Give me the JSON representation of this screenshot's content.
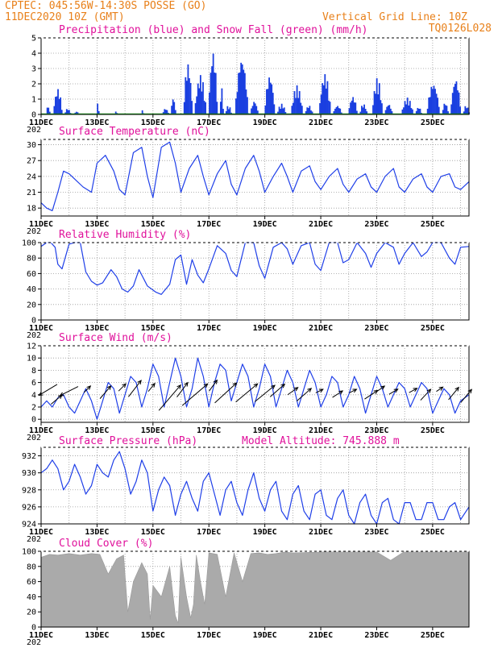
{
  "header": {
    "line1": "CPTEC:   045:56W-14:30S   POSSE (GO)",
    "line2": "11DEC2020 10Z (GMT)",
    "right1": "Vertical Grid Line: 10Z",
    "right2": "TQ0126L028"
  },
  "x_dates": [
    "11DEC",
    "13DEC",
    "15DEC",
    "17DEC",
    "19DEC",
    "21DEC",
    "23DEC",
    "25DEC"
  ],
  "x_year_stub": "202",
  "colors": {
    "line": "#1f3fe8",
    "precip": "#1a3fe0",
    "snow": "#1aa01a",
    "cloud": "#aaaaaa",
    "title": "#e0119b",
    "header": "#e8801a"
  },
  "chart_data": [
    {
      "type": "bar",
      "title": "Precipitation (blue) and Snow Fall (green) (mm/h)",
      "ylim": [
        0,
        5
      ],
      "yticks": [
        "0",
        "1",
        "2",
        "3",
        "4",
        "5"
      ],
      "x_days": [
        0,
        15.3
      ],
      "series": [
        {
          "name": "Precipitation",
          "color": "#1a3fe0"
        },
        {
          "name": "Snow Fall",
          "color": "#1aa01a",
          "values": [
            0
          ]
        }
      ],
      "episodes": [
        [
          0.15,
          0.3,
          0.6
        ],
        [
          0.4,
          0.75,
          1.7
        ],
        [
          0.8,
          1.05,
          0.4
        ],
        [
          1.15,
          1.35,
          0.2
        ],
        [
          1.95,
          2.05,
          0.8
        ],
        [
          2.6,
          2.7,
          0.3
        ],
        [
          3.55,
          3.65,
          0.3
        ],
        [
          4.3,
          4.55,
          0.4
        ],
        [
          4.6,
          4.8,
          1.1
        ],
        [
          5.05,
          5.4,
          3.4
        ],
        [
          5.45,
          5.9,
          2.6
        ],
        [
          5.95,
          6.3,
          4.2
        ],
        [
          6.35,
          6.5,
          1.8
        ],
        [
          6.55,
          6.8,
          0.6
        ],
        [
          6.9,
          7.4,
          3.8
        ],
        [
          7.45,
          7.75,
          0.9
        ],
        [
          7.95,
          8.35,
          2.6
        ],
        [
          8.4,
          8.75,
          0.7
        ],
        [
          8.9,
          9.35,
          1.9
        ],
        [
          9.4,
          9.7,
          0.6
        ],
        [
          9.9,
          10.35,
          2.7
        ],
        [
          10.4,
          10.75,
          0.6
        ],
        [
          10.95,
          11.3,
          1.2
        ],
        [
          11.35,
          11.65,
          0.7
        ],
        [
          11.8,
          12.2,
          2.4
        ],
        [
          12.25,
          12.55,
          0.7
        ],
        [
          12.85,
          13.3,
          1.1
        ],
        [
          13.35,
          13.6,
          0.5
        ],
        [
          13.75,
          14.25,
          2.1
        ],
        [
          14.3,
          14.55,
          0.8
        ],
        [
          14.6,
          15.0,
          2.4
        ],
        [
          15.05,
          15.3,
          0.6
        ]
      ]
    },
    {
      "type": "line",
      "title": "Surface Temperature (nC)",
      "ylim": [
        16.5,
        31
      ],
      "yticks": [
        "18",
        "21",
        "24",
        "27",
        "30"
      ],
      "x": [
        0,
        0.2,
        0.4,
        0.6,
        0.8,
        1.0,
        1.2,
        1.5,
        1.8,
        2.0,
        2.3,
        2.6,
        2.8,
        3.0,
        3.3,
        3.6,
        3.8,
        4.0,
        4.3,
        4.6,
        4.8,
        5.0,
        5.3,
        5.6,
        5.8,
        6.0,
        6.3,
        6.6,
        6.8,
        7.0,
        7.3,
        7.6,
        7.8,
        8.0,
        8.3,
        8.6,
        8.8,
        9.0,
        9.3,
        9.6,
        9.8,
        10.0,
        10.3,
        10.6,
        10.8,
        11.0,
        11.3,
        11.6,
        11.8,
        12.0,
        12.3,
        12.6,
        12.8,
        13.0,
        13.3,
        13.6,
        13.8,
        14.0,
        14.3,
        14.6,
        14.8,
        15.0,
        15.3
      ],
      "values": [
        19.0,
        18.0,
        17.5,
        21.0,
        25.0,
        24.5,
        23.5,
        22.0,
        21.0,
        26.5,
        28.0,
        25.0,
        21.5,
        20.5,
        28.5,
        29.5,
        24.0,
        20.0,
        29.5,
        30.5,
        26.5,
        21.0,
        25.5,
        28.0,
        24.0,
        20.5,
        24.5,
        27.0,
        22.5,
        20.5,
        25.5,
        28.0,
        25.0,
        21.0,
        24.0,
        26.5,
        24.0,
        21.0,
        25.0,
        26.0,
        23.0,
        21.5,
        24.0,
        25.5,
        22.5,
        21.0,
        23.5,
        24.5,
        22.0,
        21.0,
        24.0,
        25.5,
        22.0,
        21.0,
        23.5,
        24.5,
        22.0,
        21.0,
        24.0,
        24.5,
        22.0,
        21.5,
        23.0
      ]
    },
    {
      "type": "line",
      "title": "Relative Humidity (%)",
      "ylim": [
        0,
        100
      ],
      "yticks": [
        "0",
        "20",
        "40",
        "60",
        "80",
        "100"
      ],
      "x": [
        0,
        0.2,
        0.35,
        0.5,
        0.6,
        0.75,
        1.0,
        1.2,
        1.4,
        1.6,
        1.8,
        2.0,
        2.2,
        2.5,
        2.7,
        2.9,
        3.1,
        3.3,
        3.5,
        3.8,
        4.1,
        4.3,
        4.6,
        4.8,
        5.0,
        5.2,
        5.4,
        5.6,
        5.8,
        6.0,
        6.3,
        6.6,
        6.8,
        7.0,
        7.3,
        7.6,
        7.8,
        8.0,
        8.3,
        8.6,
        8.8,
        9.0,
        9.3,
        9.6,
        9.8,
        10.0,
        10.3,
        10.6,
        10.8,
        11.0,
        11.3,
        11.6,
        11.8,
        12.0,
        12.3,
        12.6,
        12.8,
        13.0,
        13.3,
        13.6,
        13.8,
        14.0,
        14.3,
        14.6,
        14.8,
        15.0,
        15.3
      ],
      "values": [
        95,
        100,
        100,
        94,
        72,
        66,
        98,
        100,
        100,
        62,
        50,
        45,
        48,
        65,
        56,
        40,
        36,
        44,
        65,
        44,
        36,
        33,
        46,
        78,
        84,
        46,
        78,
        58,
        48,
        66,
        96,
        86,
        64,
        56,
        100,
        100,
        70,
        54,
        94,
        100,
        92,
        72,
        96,
        100,
        72,
        64,
        100,
        100,
        74,
        78,
        100,
        86,
        68,
        86,
        100,
        94,
        72,
        86,
        100,
        82,
        88,
        100,
        100,
        80,
        72,
        94,
        95
      ]
    },
    {
      "type": "line",
      "title": "Surface Wind (m/s)",
      "ylim": [
        -0.5,
        12
      ],
      "yticks": [
        "0",
        "2",
        "4",
        "6",
        "8",
        "10",
        "12"
      ],
      "x": [
        0,
        0.2,
        0.4,
        0.6,
        0.8,
        1.0,
        1.2,
        1.4,
        1.6,
        1.8,
        2.0,
        2.2,
        2.4,
        2.6,
        2.8,
        3.0,
        3.2,
        3.4,
        3.6,
        3.8,
        4.0,
        4.2,
        4.4,
        4.6,
        4.8,
        5.0,
        5.2,
        5.4,
        5.6,
        5.8,
        6.0,
        6.2,
        6.4,
        6.6,
        6.8,
        7.0,
        7.2,
        7.4,
        7.6,
        7.8,
        8.0,
        8.2,
        8.4,
        8.6,
        8.8,
        9.0,
        9.2,
        9.4,
        9.6,
        9.8,
        10.0,
        10.2,
        10.4,
        10.6,
        10.8,
        11.0,
        11.2,
        11.4,
        11.6,
        11.8,
        12.0,
        12.2,
        12.4,
        12.6,
        12.8,
        13.0,
        13.2,
        13.4,
        13.6,
        13.8,
        14.0,
        14.2,
        14.4,
        14.6,
        14.8,
        15.0,
        15.3
      ],
      "values": [
        2,
        3,
        2,
        3.5,
        4,
        2,
        1,
        3,
        5,
        3,
        0,
        3,
        6,
        5,
        1,
        4,
        7,
        6,
        2,
        5,
        9,
        7,
        2,
        6,
        10,
        7,
        2,
        5,
        10,
        7,
        2,
        6,
        9,
        8,
        3,
        6,
        9,
        7,
        2,
        5,
        9,
        7,
        2,
        5,
        8,
        6,
        2,
        5,
        8,
        6,
        2,
        4,
        7,
        6,
        2,
        4,
        7,
        5,
        1,
        4,
        7,
        5,
        2,
        4,
        6,
        5,
        2,
        4,
        6,
        5,
        1,
        3,
        5,
        4,
        1,
        3,
        4
      ],
      "arrows": [
        [
          0.25,
          4.8,
          -50,
          30
        ],
        [
          0.55,
          3.2,
          30,
          -25
        ],
        [
          1.0,
          4.6,
          -50,
          25
        ],
        [
          1.65,
          4.9,
          18,
          -18
        ],
        [
          2.3,
          4.4,
          30,
          -35
        ],
        [
          2.9,
          5.2,
          20,
          -20
        ],
        [
          3.35,
          5.0,
          35,
          -45
        ],
        [
          3.95,
          5.2,
          18,
          -22
        ],
        [
          4.6,
          3.5,
          60,
          -70
        ],
        [
          5.05,
          4.8,
          30,
          -40
        ],
        [
          5.5,
          4.0,
          70,
          -60
        ],
        [
          6.15,
          5.5,
          22,
          -30
        ],
        [
          6.6,
          4.3,
          60,
          -55
        ],
        [
          7.35,
          4.3,
          60,
          -50
        ],
        [
          8.0,
          4.2,
          55,
          -45
        ],
        [
          8.45,
          4.7,
          40,
          -35
        ],
        [
          9.0,
          4.6,
          28,
          -20
        ],
        [
          9.4,
          4.0,
          40,
          -35
        ],
        [
          9.95,
          4.6,
          20,
          -10
        ],
        [
          10.6,
          4.1,
          28,
          -18
        ],
        [
          11.15,
          4.6,
          20,
          -10
        ],
        [
          11.8,
          4.0,
          36,
          -24
        ],
        [
          12.15,
          5.0,
          20,
          -14
        ],
        [
          12.6,
          4.5,
          24,
          -14
        ],
        [
          13.3,
          4.7,
          22,
          -12
        ],
        [
          13.75,
          4.0,
          28,
          -30
        ],
        [
          14.25,
          4.9,
          18,
          -12
        ],
        [
          14.75,
          4.2,
          28,
          -34
        ],
        [
          15.2,
          3.8,
          30,
          -36
        ]
      ]
    },
    {
      "type": "line",
      "title": "Surface Pressure (hPa)",
      "subtitle": "Model Altitude: 745.888 m",
      "ylim": [
        924,
        933
      ],
      "yticks": [
        "924",
        "926",
        "928",
        "930",
        "932"
      ],
      "x": [
        0,
        0.2,
        0.4,
        0.6,
        0.8,
        1.0,
        1.2,
        1.4,
        1.6,
        1.8,
        2.0,
        2.2,
        2.4,
        2.6,
        2.8,
        3.0,
        3.2,
        3.4,
        3.6,
        3.8,
        4.0,
        4.2,
        4.4,
        4.6,
        4.8,
        5.0,
        5.2,
        5.4,
        5.6,
        5.8,
        6.0,
        6.2,
        6.4,
        6.6,
        6.8,
        7.0,
        7.2,
        7.4,
        7.6,
        7.8,
        8.0,
        8.2,
        8.4,
        8.6,
        8.8,
        9.0,
        9.2,
        9.4,
        9.6,
        9.8,
        10.0,
        10.2,
        10.4,
        10.6,
        10.8,
        11.0,
        11.2,
        11.4,
        11.6,
        11.8,
        12.0,
        12.2,
        12.4,
        12.6,
        12.8,
        13.0,
        13.2,
        13.4,
        13.6,
        13.8,
        14.0,
        14.2,
        14.4,
        14.6,
        14.8,
        15.0,
        15.3
      ],
      "values": [
        930.0,
        930.5,
        931.5,
        930.5,
        928.0,
        929.0,
        931.0,
        929.5,
        927.5,
        928.5,
        931.0,
        930.0,
        929.5,
        931.5,
        932.5,
        930.5,
        927.5,
        929.0,
        931.5,
        930.0,
        925.5,
        928.0,
        929.5,
        928.5,
        925.0,
        927.5,
        929.0,
        927.0,
        925.5,
        929.0,
        930.0,
        927.5,
        925.0,
        928.0,
        929.0,
        926.5,
        925.0,
        928.0,
        930.0,
        927.0,
        925.5,
        928.0,
        929.0,
        925.5,
        924.5,
        927.5,
        928.5,
        925.5,
        924.5,
        927.5,
        928.0,
        925.0,
        924.5,
        927.0,
        928.0,
        925.0,
        924.0,
        926.5,
        927.5,
        925.0,
        924.0,
        926.5,
        927.0,
        924.5,
        924.0,
        926.5,
        926.5,
        924.5,
        924.5,
        926.5,
        926.5,
        924.5,
        924.5,
        926.0,
        926.5,
        924.5,
        926.0
      ]
    },
    {
      "type": "area",
      "title": "Cloud Cover (%)",
      "ylim": [
        0,
        100
      ],
      "yticks": [
        "0",
        "20",
        "40",
        "60",
        "80",
        "100"
      ],
      "x": [
        0,
        0.3,
        0.6,
        1.0,
        1.4,
        1.8,
        2.1,
        2.4,
        2.7,
        2.95,
        3.1,
        3.3,
        3.6,
        3.8,
        3.9,
        4.0,
        4.3,
        4.6,
        4.8,
        4.9,
        5.0,
        5.2,
        5.35,
        5.45,
        5.55,
        5.7,
        5.85,
        6.0,
        6.3,
        6.6,
        6.9,
        7.2,
        7.5,
        7.8,
        8.1,
        8.4,
        8.7,
        9.0,
        10.0,
        11.0,
        12.0,
        12.5,
        13.0,
        14.0,
        15.0,
        15.3
      ],
      "values": [
        92,
        96,
        95,
        97,
        95,
        97,
        96,
        70,
        90,
        95,
        20,
        60,
        85,
        70,
        10,
        55,
        40,
        80,
        15,
        5,
        92,
        40,
        12,
        30,
        95,
        60,
        30,
        98,
        96,
        40,
        98,
        60,
        97,
        98,
        96,
        97,
        99,
        98,
        99,
        100,
        99,
        88,
        100,
        100,
        100,
        100
      ]
    }
  ]
}
